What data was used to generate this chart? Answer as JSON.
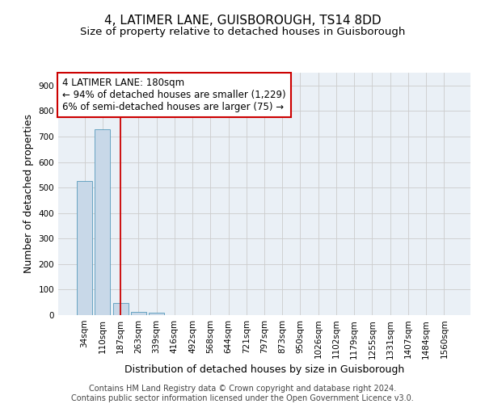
{
  "title1": "4, LATIMER LANE, GUISBOROUGH, TS14 8DD",
  "title2": "Size of property relative to detached houses in Guisborough",
  "xlabel": "Distribution of detached houses by size in Guisborough",
  "ylabel": "Number of detached properties",
  "categories": [
    "34sqm",
    "110sqm",
    "187sqm",
    "263sqm",
    "339sqm",
    "416sqm",
    "492sqm",
    "568sqm",
    "644sqm",
    "721sqm",
    "797sqm",
    "873sqm",
    "950sqm",
    "1026sqm",
    "1102sqm",
    "1179sqm",
    "1255sqm",
    "1331sqm",
    "1407sqm",
    "1484sqm",
    "1560sqm"
  ],
  "values": [
    527,
    727,
    47,
    12,
    9,
    0,
    0,
    0,
    0,
    0,
    0,
    0,
    0,
    0,
    0,
    0,
    0,
    0,
    0,
    0,
    0
  ],
  "bar_color": "#c8d8e8",
  "bar_edge_color": "#5599bb",
  "vline_x": 2,
  "vline_color": "#cc0000",
  "annotation_text": "4 LATIMER LANE: 180sqm\n← 94% of detached houses are smaller (1,229)\n6% of semi-detached houses are larger (75) →",
  "annotation_box_color": "#ffffff",
  "annotation_box_edge": "#cc0000",
  "ylim": [
    0,
    950
  ],
  "yticks": [
    0,
    100,
    200,
    300,
    400,
    500,
    600,
    700,
    800,
    900
  ],
  "grid_color": "#cccccc",
  "bg_color": "#eaf0f6",
  "footer1": "Contains HM Land Registry data © Crown copyright and database right 2024.",
  "footer2": "Contains public sector information licensed under the Open Government Licence v3.0.",
  "title1_fontsize": 11,
  "title2_fontsize": 9.5,
  "xlabel_fontsize": 9,
  "ylabel_fontsize": 9,
  "tick_fontsize": 7.5,
  "annotation_fontsize": 8.5,
  "footer_fontsize": 7
}
